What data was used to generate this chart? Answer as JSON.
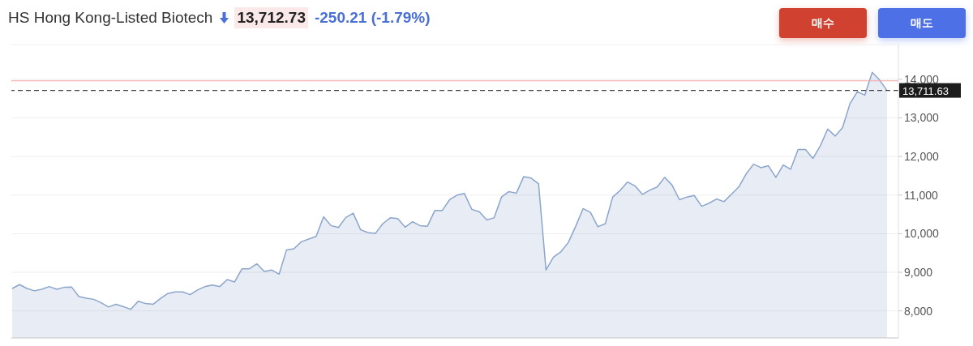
{
  "chart_data": {
    "type": "area",
    "title": "HS Hong Kong-Listed Biotech",
    "annotations": [
      "13,712.73",
      "-250.21 (-1.79%)",
      "매수",
      "매도"
    ],
    "categories": [
      null,
      null,
      null,
      null,
      null,
      null,
      null,
      null,
      null,
      null,
      null,
      null,
      null,
      null,
      null,
      null,
      null,
      null,
      null,
      null,
      null,
      null,
      null,
      null,
      null,
      null,
      null,
      null,
      null,
      null,
      null,
      null,
      null,
      null,
      null,
      null,
      null,
      null,
      null,
      null,
      null,
      null,
      null,
      null,
      null,
      null,
      null,
      null,
      null,
      null,
      null,
      null,
      null,
      null,
      null,
      null,
      null,
      null,
      null,
      null,
      null,
      null,
      null,
      null,
      null,
      null,
      null,
      null,
      null,
      null,
      null,
      null,
      null,
      null,
      null,
      null,
      null,
      null,
      null,
      null,
      null,
      null,
      null,
      null,
      null,
      null,
      null,
      null,
      null,
      null,
      null,
      null,
      null,
      null,
      null,
      null,
      null,
      null,
      null,
      null,
      null,
      null,
      null,
      null,
      null,
      null,
      null,
      null,
      null,
      null,
      null,
      null,
      null,
      null,
      null,
      null,
      null,
      null,
      null
    ],
    "series": [
      {
        "color": "#8ba5cb",
        "values": [
          8580,
          8680,
          8580,
          8520,
          8560,
          8630,
          8560,
          8610,
          8620,
          8370,
          8330,
          8300,
          8210,
          8100,
          8170,
          8110,
          8040,
          8250,
          8190,
          8170,
          8320,
          8450,
          8490,
          8490,
          8420,
          8540,
          8630,
          8670,
          8630,
          8810,
          8750,
          9090,
          9090,
          9220,
          9020,
          9060,
          8950,
          9580,
          9610,
          9790,
          9860,
          9930,
          10440,
          10210,
          10160,
          10420,
          10530,
          10100,
          10030,
          10010,
          10260,
          10410,
          10390,
          10170,
          10310,
          10210,
          10190,
          10600,
          10600,
          10880,
          11000,
          11040,
          10630,
          10570,
          10360,
          10410,
          10950,
          11090,
          11050,
          11480,
          11440,
          11290,
          9060,
          9390,
          9530,
          9770,
          10190,
          10650,
          10550,
          10180,
          10260,
          10950,
          11120,
          11340,
          11240,
          11020,
          11130,
          11210,
          11460,
          11260,
          10880,
          10950,
          10990,
          10710,
          10790,
          10900,
          10830,
          11020,
          11210,
          11550,
          11800,
          11710,
          11760,
          11460,
          11780,
          11670,
          12180,
          12180,
          11950,
          12280,
          12710,
          12530,
          12750,
          13370,
          13680,
          13590,
          14180,
          13980,
          13710
        ]
      }
    ],
    "ylim": [
      7300,
      14900
    ],
    "yticks": [
      {
        "value": 8000,
        "label": "8,000"
      },
      {
        "value": 9000,
        "label": "9,000"
      },
      {
        "value": 10000,
        "label": "10,000"
      },
      {
        "value": 11000,
        "label": "11,000"
      },
      {
        "value": 12000,
        "label": "12,000"
      },
      {
        "value": 13000,
        "label": "13,000"
      },
      {
        "value": 14000,
        "label": "14,000"
      }
    ],
    "grid": "y",
    "ref_lines": [
      {
        "axis": "y",
        "value": 13960,
        "color": "#f4a3a3",
        "line_style": "solid"
      },
      {
        "axis": "y",
        "value": 13711.63,
        "label": "13,711.63",
        "color": "#444444",
        "line_style": "dashed"
      }
    ]
  }
}
